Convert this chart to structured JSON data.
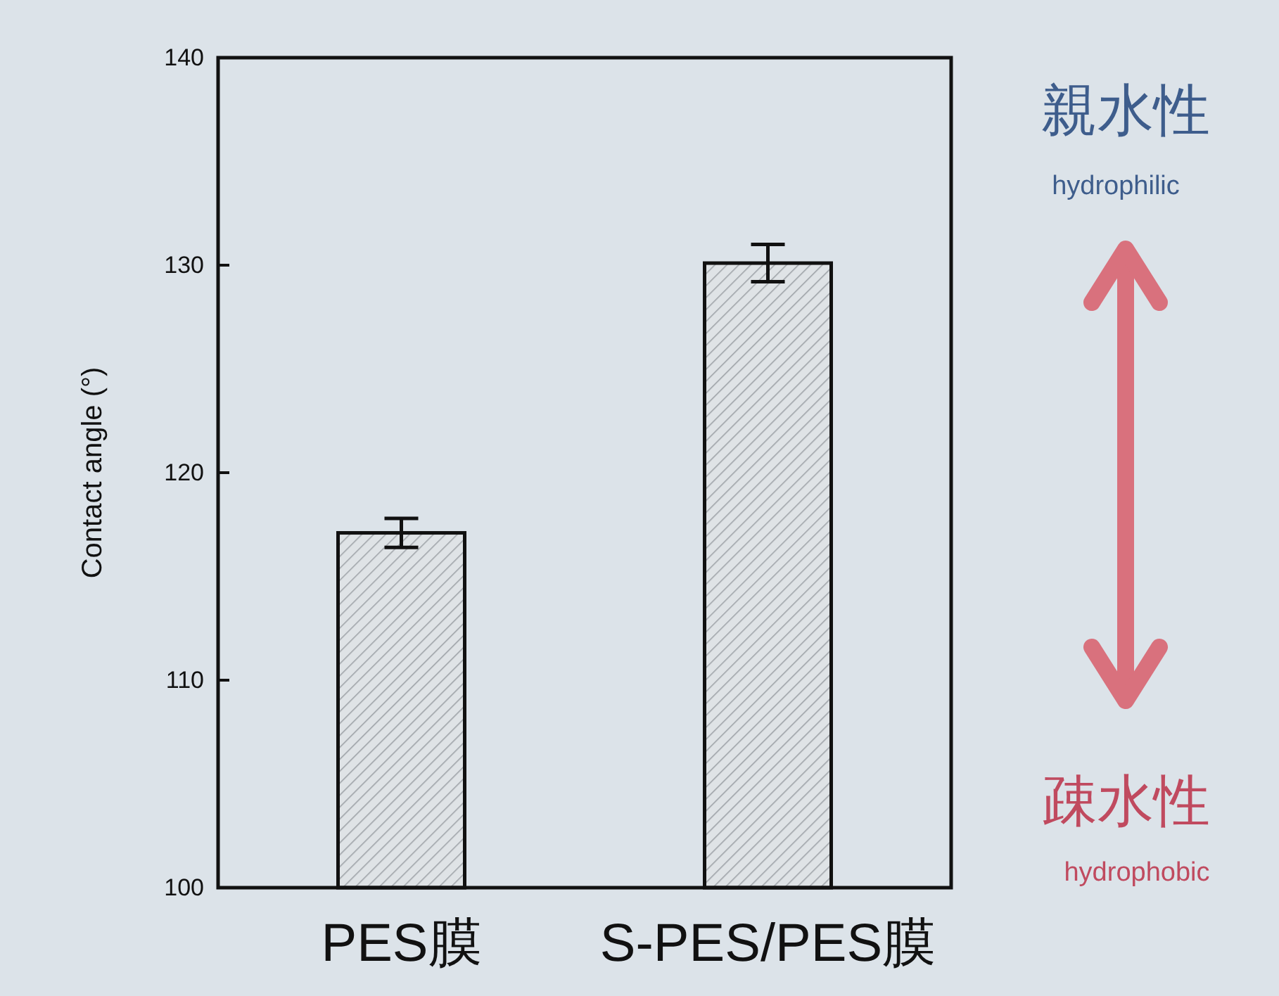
{
  "chart_data": {
    "type": "bar",
    "ylabel": "Contact angle (°)",
    "categories": [
      "PES膜",
      "S-PES/PES膜"
    ],
    "values": [
      117.1,
      130.1
    ],
    "errors": [
      0.7,
      0.9
    ],
    "color": "#111111",
    "ylim": [
      100,
      140
    ],
    "yticks": [
      100,
      110,
      120,
      130,
      140
    ],
    "grid": false,
    "annotations": [
      "親水性",
      "hydrophilic",
      "疎水性",
      "hydrophobic"
    ]
  }
}
